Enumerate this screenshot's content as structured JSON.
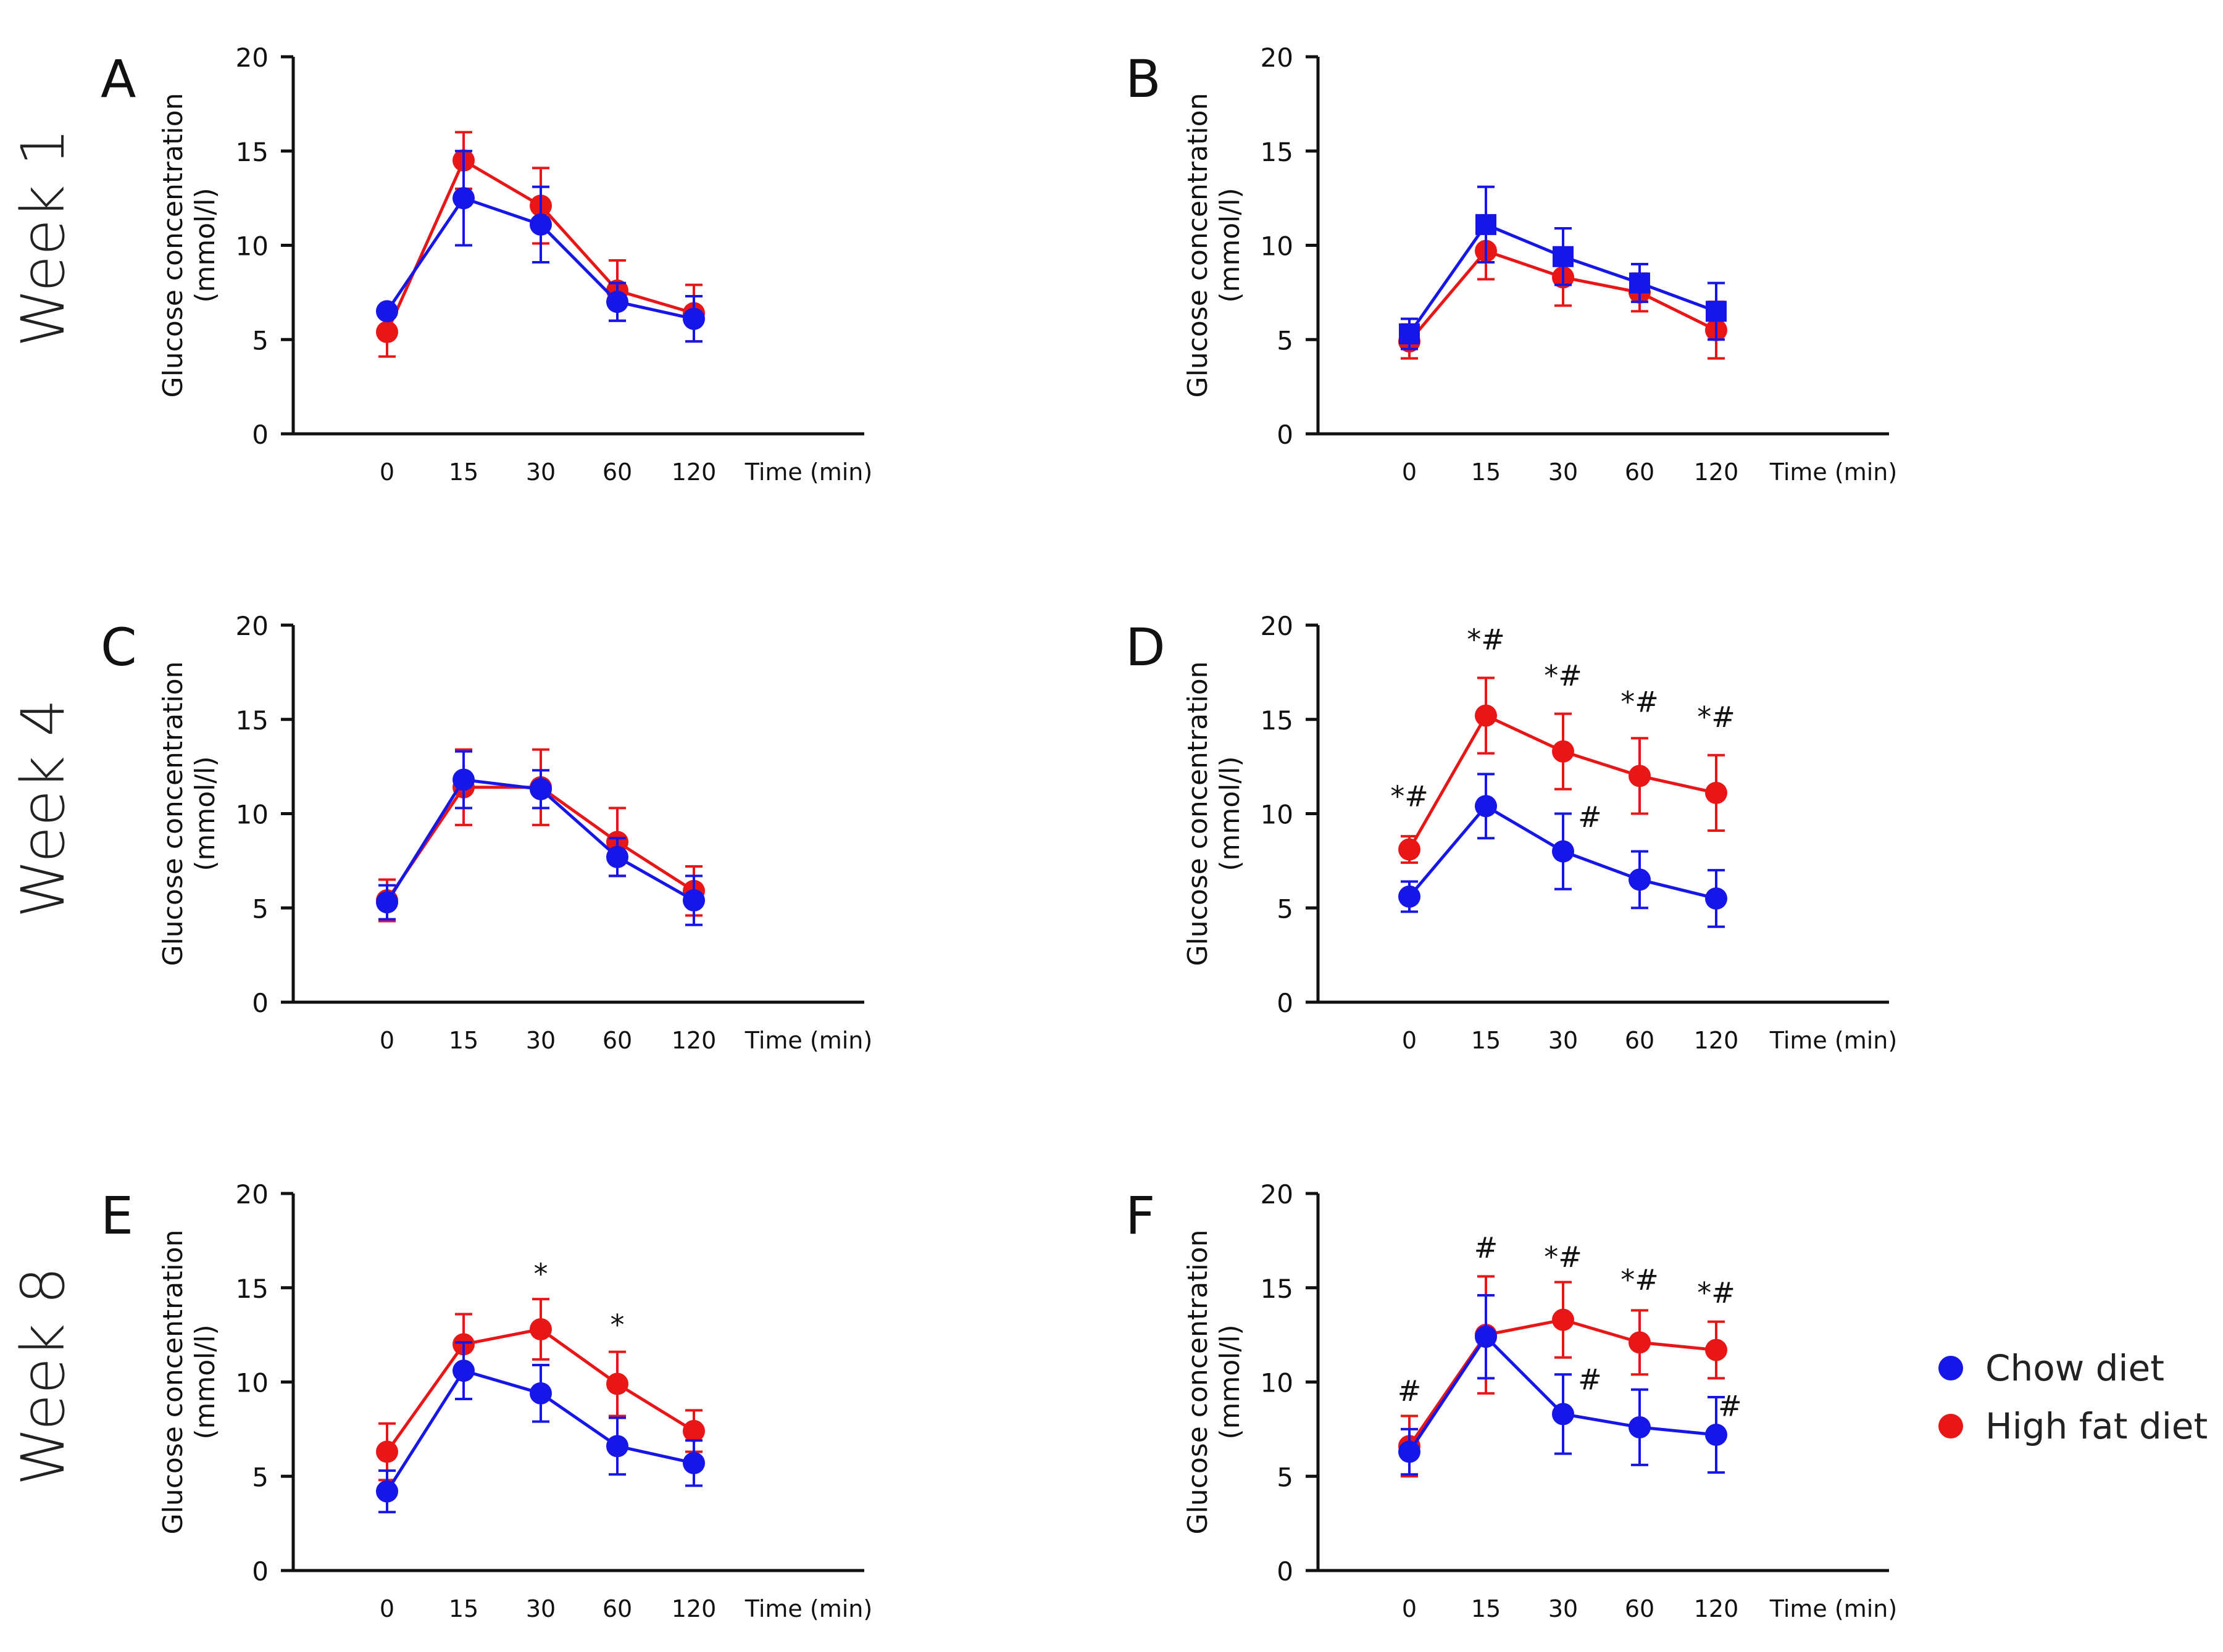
{
  "row_labels": [
    "Week 1",
    "Week 4",
    "Week 8"
  ],
  "legend": [
    {
      "label": "Chow diet",
      "color": "#1616e8"
    },
    {
      "label": "High fat diet",
      "color": "#e81616"
    }
  ],
  "colors": {
    "chow": "#1616e8",
    "hfd": "#e81616",
    "axis": "#111111"
  },
  "chart_data": [
    {
      "panel": "A",
      "type": "line",
      "week": "Week 1",
      "categories": [
        "0",
        "15",
        "30",
        "60",
        "120"
      ],
      "xlabel": "Time (min)",
      "ylabel": "Glucose concentration (mmol/l)",
      "ylim": [
        0,
        20
      ],
      "yticks": [
        0,
        5,
        10,
        15,
        20
      ],
      "marker_chow": "circle",
      "series": [
        {
          "name": "Chow diet",
          "values": [
            6.5,
            12.5,
            11.1,
            7.0,
            6.1
          ],
          "errors": [
            0.3,
            2.5,
            2.0,
            1.0,
            1.2
          ]
        },
        {
          "name": "High fat diet",
          "values": [
            5.4,
            14.5,
            12.1,
            7.6,
            6.4
          ],
          "errors": [
            1.3,
            1.5,
            2.0,
            1.6,
            1.5
          ]
        }
      ],
      "annotations": []
    },
    {
      "panel": "B",
      "type": "line",
      "week": "Week 1",
      "categories": [
        "0",
        "15",
        "30",
        "60",
        "120"
      ],
      "xlabel": "Time (min)",
      "ylabel": "Glucose concentration (mmol/l)",
      "ylim": [
        0,
        20
      ],
      "yticks": [
        0,
        5,
        10,
        15,
        20
      ],
      "marker_chow": "square",
      "series": [
        {
          "name": "Chow diet",
          "values": [
            5.3,
            11.1,
            9.4,
            8.0,
            6.5
          ],
          "errors": [
            0.8,
            2.0,
            1.5,
            1.0,
            1.5
          ]
        },
        {
          "name": "High fat diet",
          "values": [
            4.9,
            9.7,
            8.3,
            7.5,
            5.5
          ],
          "errors": [
            0.9,
            1.5,
            1.5,
            1.0,
            1.5
          ]
        }
      ],
      "annotations": []
    },
    {
      "panel": "C",
      "type": "line",
      "week": "Week 4",
      "categories": [
        "0",
        "15",
        "30",
        "60",
        "120"
      ],
      "xlabel": "Time (min)",
      "ylabel": "Glucose concentration (mmol/l)",
      "ylim": [
        0,
        20
      ],
      "yticks": [
        0,
        5,
        10,
        15,
        20
      ],
      "marker_chow": "circle",
      "series": [
        {
          "name": "Chow diet",
          "values": [
            5.3,
            11.8,
            11.3,
            7.7,
            5.4
          ],
          "errors": [
            0.9,
            1.5,
            1.0,
            1.0,
            1.3
          ]
        },
        {
          "name": "High fat diet",
          "values": [
            5.4,
            11.4,
            11.4,
            8.5,
            5.9
          ],
          "errors": [
            1.1,
            2.0,
            2.0,
            1.8,
            1.3
          ]
        }
      ],
      "annotations": []
    },
    {
      "panel": "D",
      "type": "line",
      "week": "Week 4",
      "categories": [
        "0",
        "15",
        "30",
        "60",
        "120"
      ],
      "xlabel": "Time (min)",
      "ylabel": "Glucose concentration (mmol/l)",
      "ylim": [
        0,
        20
      ],
      "yticks": [
        0,
        5,
        10,
        15,
        20
      ],
      "marker_chow": "circle",
      "series": [
        {
          "name": "Chow diet",
          "values": [
            5.6,
            10.4,
            8.0,
            6.5,
            5.5
          ],
          "errors": [
            0.8,
            1.7,
            2.0,
            1.5,
            1.5
          ]
        },
        {
          "name": "High fat diet",
          "values": [
            8.1,
            15.2,
            13.3,
            12.0,
            11.1
          ],
          "errors": [
            0.7,
            2.0,
            2.0,
            2.0,
            2.0
          ]
        }
      ],
      "annotations": [
        {
          "text": "*#",
          "x": "0",
          "y": 10.4
        },
        {
          "text": "*#",
          "x": "15",
          "y": 18.7
        },
        {
          "text": "*#",
          "x": "30",
          "y": 16.8
        },
        {
          "text": "*#",
          "x": "60",
          "y": 15.4
        },
        {
          "text": "*#",
          "x": "120",
          "y": 14.6
        },
        {
          "text": "#",
          "x": "30",
          "y": 9.3,
          "dx": 0.35
        }
      ]
    },
    {
      "panel": "E",
      "type": "line",
      "week": "Week 8",
      "categories": [
        "0",
        "15",
        "30",
        "60",
        "120"
      ],
      "xlabel": "Time (min)",
      "ylabel": "Glucose concentration (mmol/l)",
      "ylim": [
        0,
        20
      ],
      "yticks": [
        0,
        5,
        10,
        15,
        20
      ],
      "marker_chow": "circle",
      "series": [
        {
          "name": "Chow diet",
          "values": [
            4.2,
            10.6,
            9.4,
            6.6,
            5.7
          ],
          "errors": [
            1.1,
            1.5,
            1.5,
            1.5,
            1.2
          ]
        },
        {
          "name": "High fat diet",
          "values": [
            6.3,
            12.0,
            12.8,
            9.9,
            7.4
          ],
          "errors": [
            1.5,
            1.6,
            1.6,
            1.7,
            1.1
          ]
        }
      ],
      "annotations": [
        {
          "text": "*",
          "x": "30",
          "y": 15.2
        },
        {
          "text": "*",
          "x": "60",
          "y": 12.5
        }
      ]
    },
    {
      "panel": "F",
      "type": "line",
      "week": "Week 8",
      "categories": [
        "0",
        "15",
        "30",
        "60",
        "120"
      ],
      "xlabel": "Time (min)",
      "ylabel": "Glucose concentration (mmol/l)",
      "ylim": [
        0,
        20
      ],
      "yticks": [
        0,
        5,
        10,
        15,
        20
      ],
      "marker_chow": "circle",
      "series": [
        {
          "name": "Chow diet",
          "values": [
            6.3,
            12.4,
            8.3,
            7.6,
            7.2
          ],
          "errors": [
            1.2,
            2.2,
            2.1,
            2.0,
            2.0
          ]
        },
        {
          "name": "High fat diet",
          "values": [
            6.6,
            12.5,
            13.3,
            12.1,
            11.7
          ],
          "errors": [
            1.6,
            3.1,
            2.0,
            1.7,
            1.5
          ]
        }
      ],
      "annotations": [
        {
          "text": "#",
          "x": "0",
          "y": 9.0
        },
        {
          "text": "#",
          "x": "15",
          "y": 16.6
        },
        {
          "text": "*#",
          "x": "30",
          "y": 16.1
        },
        {
          "text": "*#",
          "x": "60",
          "y": 14.9
        },
        {
          "text": "*#",
          "x": "120",
          "y": 14.2
        },
        {
          "text": "#",
          "x": "30",
          "y": 9.6,
          "dx": 0.35
        },
        {
          "text": "#",
          "x": "120",
          "y": 8.2,
          "dx": 0.18
        }
      ]
    }
  ]
}
